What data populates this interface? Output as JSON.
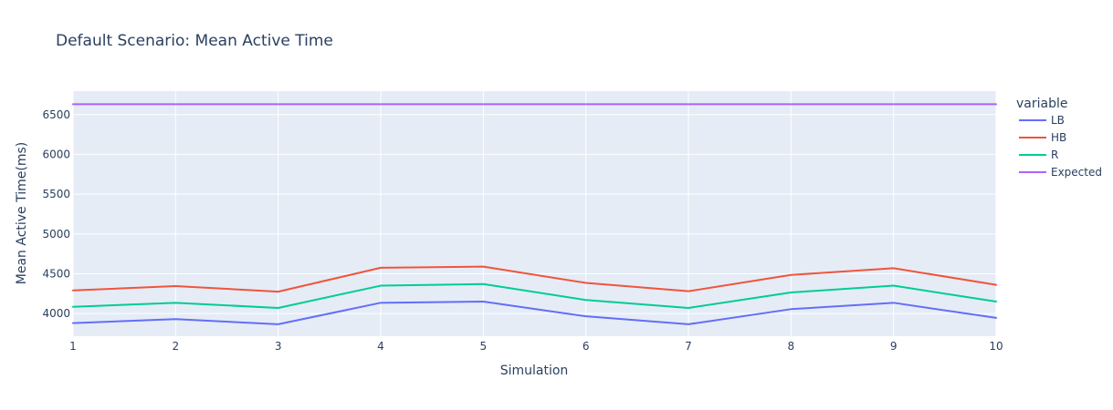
{
  "chart_data": {
    "type": "line",
    "title": "Default Scenario: Mean Active Time",
    "xlabel": "Simulation",
    "ylabel": "Mean Active Time(ms)",
    "x": [
      1,
      2,
      3,
      4,
      5,
      6,
      7,
      8,
      9,
      10
    ],
    "xlim": [
      1,
      10
    ],
    "ylim": [
      3715,
      6795
    ],
    "xticks": [
      1,
      2,
      3,
      4,
      5,
      6,
      7,
      8,
      9,
      10
    ],
    "yticks": [
      4000,
      4500,
      5000,
      5500,
      6000,
      6500
    ],
    "grid": true,
    "legend": {
      "title": "variable",
      "position": "right"
    },
    "background": "#e5ecf6",
    "series": [
      {
        "name": "LB",
        "color": "#636efa",
        "values": [
          3880,
          3930,
          3865,
          4135,
          4150,
          3965,
          3865,
          4055,
          4135,
          3945
        ]
      },
      {
        "name": "HB",
        "color": "#ef553b",
        "values": [
          4290,
          4345,
          4275,
          4575,
          4590,
          4385,
          4280,
          4485,
          4570,
          4360
        ]
      },
      {
        "name": "R",
        "color": "#00cc96",
        "values": [
          4085,
          4135,
          4070,
          4350,
          4370,
          4170,
          4070,
          4265,
          4350,
          4150
        ]
      },
      {
        "name": "Expected",
        "color": "#ab63fa",
        "values": [
          6630,
          6630,
          6630,
          6630,
          6630,
          6630,
          6630,
          6630,
          6630,
          6630
        ]
      }
    ]
  }
}
